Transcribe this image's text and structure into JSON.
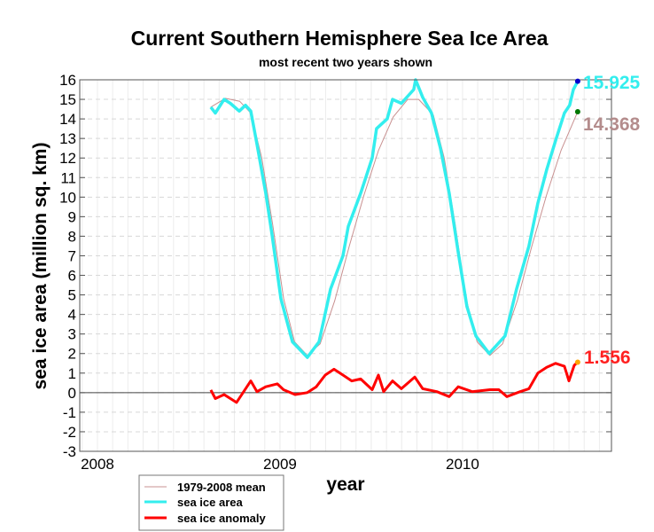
{
  "chart_data": {
    "type": "line",
    "title": "Current Southern Hemisphere Sea Ice Area",
    "subtitle": "most recent two years shown",
    "xlabel": "year",
    "ylabel": "sea ice area (million sq. km)",
    "xlim": [
      2007.903,
      2010.816
    ],
    "ylim": [
      -3,
      16
    ],
    "x_ticks": [
      2008,
      2009,
      2010
    ],
    "x_tick_labels": [
      "2008",
      "2009",
      "2010"
    ],
    "y_ticks": [
      -3,
      -2,
      -1,
      0,
      1,
      2,
      3,
      4,
      5,
      6,
      7,
      8,
      9,
      10,
      11,
      12,
      13,
      14,
      15,
      16
    ],
    "grid": true,
    "legend_position": "bottom-left",
    "series": [
      {
        "name": "1979-2008 mean",
        "color": "#c89090",
        "x": [
          2008.62,
          2008.7,
          2008.78,
          2008.84,
          2008.9,
          2008.96,
          2009.02,
          2009.08,
          2009.15,
          2009.22,
          2009.3,
          2009.38,
          2009.46,
          2009.54,
          2009.62,
          2009.7,
          2009.76,
          2009.84,
          2009.9,
          2009.96,
          2010.02,
          2010.08,
          2010.15,
          2010.22,
          2010.3,
          2010.38,
          2010.46,
          2010.54,
          2010.631
        ],
        "y": [
          14.6,
          15.05,
          14.9,
          14.3,
          12.0,
          8.6,
          4.8,
          2.6,
          1.9,
          2.5,
          4.7,
          7.5,
          10.1,
          12.4,
          14.1,
          15.0,
          15.0,
          14.2,
          12.0,
          8.6,
          4.8,
          2.6,
          1.9,
          2.5,
          4.7,
          7.5,
          10.1,
          12.4,
          14.368
        ]
      },
      {
        "name": "sea ice area",
        "color": "#33eeee",
        "x": [
          2008.621,
          2008.646,
          2008.694,
          2008.728,
          2008.777,
          2008.811,
          2008.84,
          2008.874,
          2008.922,
          2008.956,
          2009.005,
          2009.068,
          2009.15,
          2009.214,
          2009.277,
          2009.345,
          2009.374,
          2009.442,
          2009.505,
          2009.529,
          2009.587,
          2009.617,
          2009.665,
          2009.733,
          2009.743,
          2009.782,
          2009.83,
          2009.879,
          2009.927,
          2009.976,
          2010.024,
          2010.073,
          2010.146,
          2010.233,
          2010.296,
          2010.364,
          2010.413,
          2010.461,
          2010.51,
          2010.558,
          2010.587,
          2010.607,
          2010.631
        ],
        "y": [
          14.6,
          14.3,
          15.0,
          14.8,
          14.4,
          14.7,
          14.4,
          12.7,
          10.2,
          8.1,
          4.8,
          2.6,
          1.8,
          2.6,
          5.3,
          7.0,
          8.5,
          10.2,
          12.0,
          13.5,
          14.0,
          15.0,
          14.8,
          15.5,
          16.0,
          15.1,
          14.3,
          12.5,
          10.2,
          7.2,
          4.4,
          2.9,
          2.0,
          2.9,
          5.3,
          7.5,
          9.7,
          11.4,
          12.9,
          14.3,
          14.7,
          15.5,
          15.925
        ]
      },
      {
        "name": "sea ice anomaly",
        "color": "#ff0000",
        "x": [
          2008.621,
          2008.646,
          2008.694,
          2008.762,
          2008.801,
          2008.84,
          2008.874,
          2008.922,
          2008.985,
          2009.019,
          2009.083,
          2009.15,
          2009.199,
          2009.248,
          2009.296,
          2009.345,
          2009.393,
          2009.442,
          2009.505,
          2009.539,
          2009.568,
          2009.617,
          2009.665,
          2009.738,
          2009.782,
          2009.859,
          2009.927,
          2009.976,
          2010.053,
          2010.15,
          2010.199,
          2010.243,
          2010.316,
          2010.364,
          2010.413,
          2010.461,
          2010.51,
          2010.558,
          2010.583,
          2010.612,
          2010.631
        ],
        "y": [
          0.14,
          -0.3,
          -0.1,
          -0.5,
          0.05,
          0.6,
          0.05,
          0.3,
          0.45,
          0.15,
          -0.1,
          0.0,
          0.3,
          0.9,
          1.2,
          0.9,
          0.6,
          0.7,
          0.15,
          0.9,
          0.05,
          0.6,
          0.2,
          0.8,
          0.2,
          0.05,
          -0.2,
          0.3,
          0.05,
          0.15,
          0.15,
          -0.2,
          0.05,
          0.2,
          1.0,
          1.3,
          1.5,
          1.35,
          0.6,
          1.4,
          1.556
        ]
      }
    ],
    "annotations": [
      {
        "text": "15.925",
        "series": "sea ice area",
        "color": "#33eeee",
        "marker_color": "#0000cc"
      },
      {
        "text": "14.368",
        "series": "1979-2008 mean",
        "color": "#b48c8c",
        "marker_color": "#007700"
      },
      {
        "text": "1.556",
        "series": "sea ice anomaly",
        "color": "#ff2020",
        "marker_color": "#ffa500"
      }
    ]
  }
}
